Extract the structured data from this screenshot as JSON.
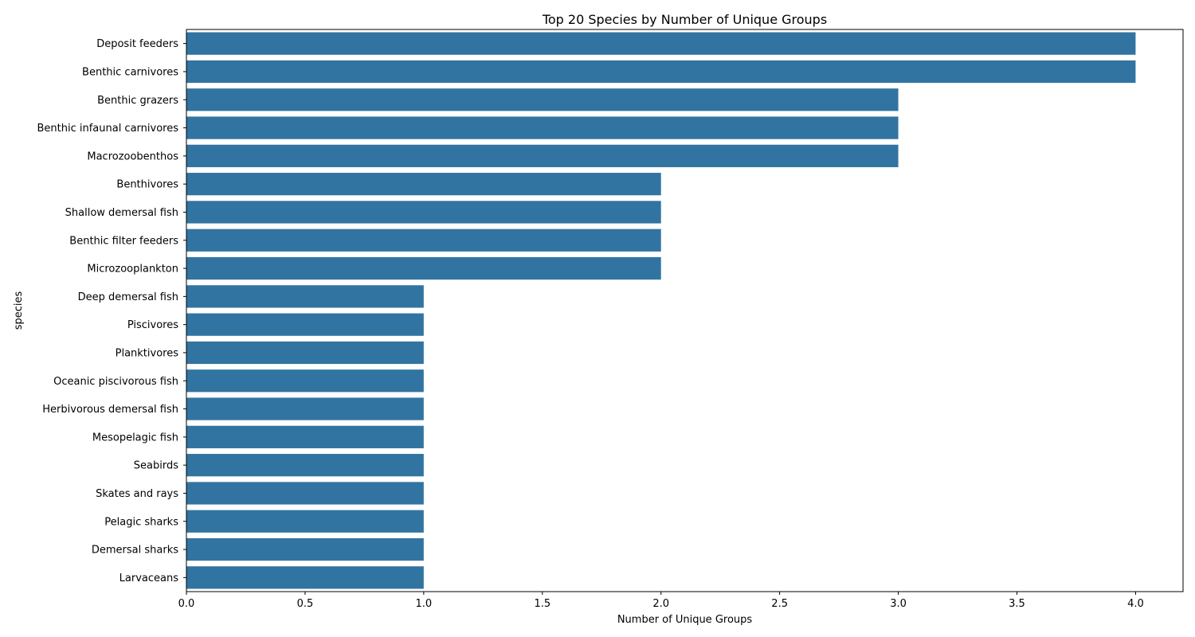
{
  "chart_data": {
    "type": "bar",
    "orientation": "horizontal",
    "title": "Top 20 Species by Number of Unique Groups",
    "xlabel": "Number of Unique Groups",
    "ylabel": "species",
    "xlim": [
      0,
      4.2
    ],
    "xticks": [
      "0.0",
      "0.5",
      "1.0",
      "1.5",
      "2.0",
      "2.5",
      "3.0",
      "3.5",
      "4.0"
    ],
    "categories": [
      "Deposit feeders",
      "Benthic carnivores",
      "Benthic grazers",
      "Benthic infaunal carnivores",
      "Macrozoobenthos",
      "Benthivores",
      "Shallow demersal fish",
      "Benthic filter feeders",
      "Microzooplankton",
      "Deep demersal fish",
      "Piscivores",
      "Planktivores",
      "Oceanic piscivorous fish",
      "Herbivorous demersal fish",
      "Mesopelagic fish",
      "Seabirds",
      "Skates and rays",
      "Pelagic sharks",
      "Demersal sharks",
      "Larvaceans"
    ],
    "values": [
      4,
      4,
      3,
      3,
      3,
      2,
      2,
      2,
      2,
      1,
      1,
      1,
      1,
      1,
      1,
      1,
      1,
      1,
      1,
      1
    ],
    "bar_color": "#3274a1",
    "grid": false,
    "legend": "none"
  }
}
